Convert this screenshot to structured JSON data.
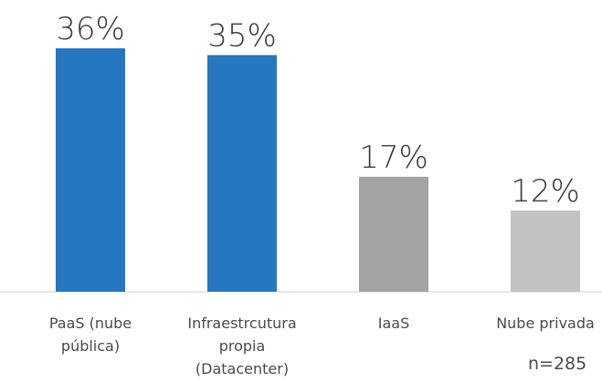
{
  "chart_data": {
    "type": "bar",
    "categories": [
      [
        "PaaS (nube",
        "pública)"
      ],
      [
        "Infraestrcutura",
        "propia",
        "(Datacenter)"
      ],
      [
        "IaaS"
      ],
      [
        "Nube privada"
      ]
    ],
    "values": [
      36,
      35,
      17,
      12
    ],
    "value_labels": [
      "36%",
      "35%",
      "17%",
      "12%"
    ],
    "bar_colors": [
      "#2577bf",
      "#2577bf",
      "#a3a3a3",
      "#c2c2c2"
    ],
    "ylim": [
      0,
      36
    ],
    "grid": false,
    "title": "",
    "xlabel": "",
    "ylabel": ""
  },
  "note": "n=285"
}
